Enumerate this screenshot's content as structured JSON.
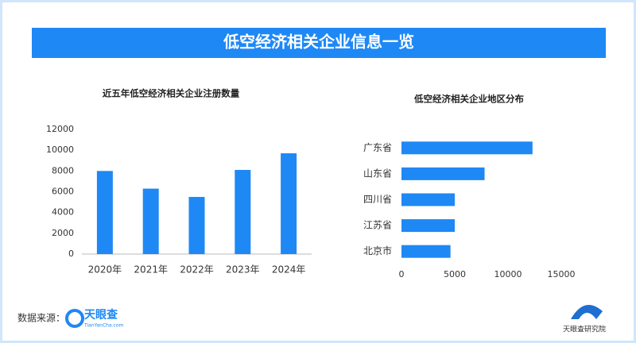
{
  "header": {
    "title": "低空经济相关企业信息一览"
  },
  "chart_data": [
    {
      "type": "bar",
      "orientation": "vertical",
      "title": "近五年低空经济相关企业注册数量",
      "categories": [
        "2020年",
        "2021年",
        "2022年",
        "2023年",
        "2024年"
      ],
      "values": [
        8000,
        6300,
        5500,
        8100,
        9700
      ],
      "color": "#1e88f5",
      "ylim": [
        0,
        12000
      ],
      "yticks": [
        0,
        2000,
        4000,
        6000,
        8000,
        10000,
        12000
      ]
    },
    {
      "type": "bar",
      "orientation": "horizontal",
      "title": "低空经济相关企业地区分布",
      "categories": [
        "广东省",
        "山东省",
        "四川省",
        "江苏省",
        "北京市"
      ],
      "values": [
        12300,
        7800,
        5000,
        5000,
        4600
      ],
      "color": "#1e88f5",
      "xlim": [
        0,
        15000
      ],
      "xticks": [
        0,
        5000,
        10000,
        15000
      ]
    }
  ],
  "footer": {
    "source_label": "数据来源：",
    "brand": "天眼查",
    "brand_url": "TianYanCha.com",
    "institute": "天眼查研究院"
  }
}
